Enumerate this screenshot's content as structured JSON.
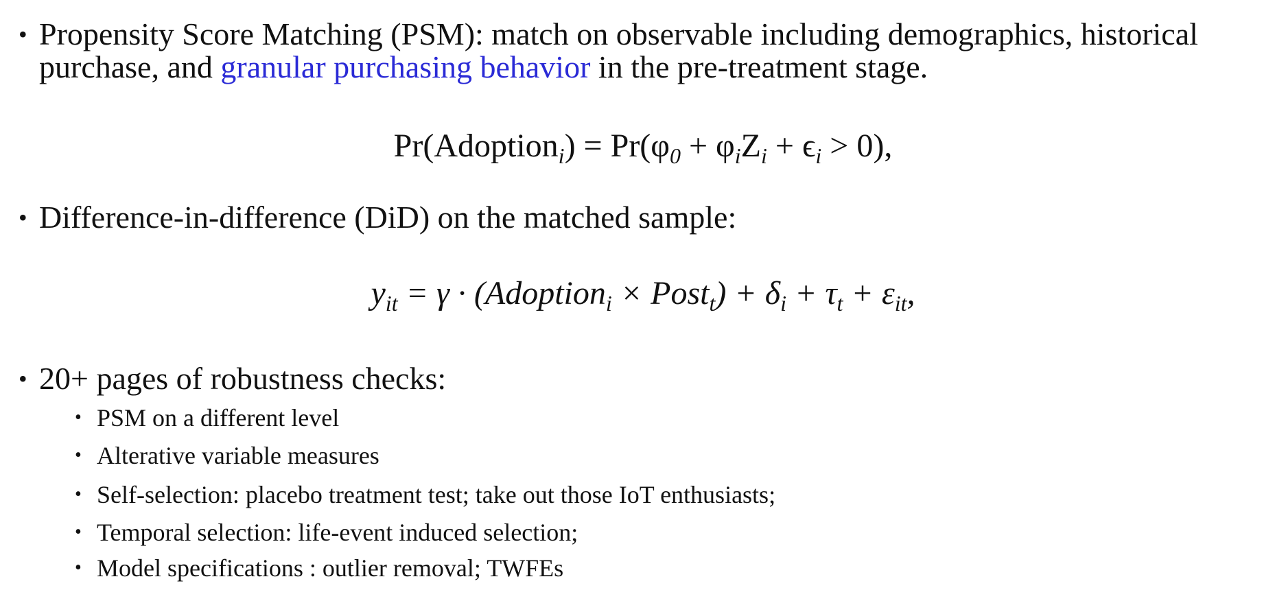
{
  "bullets": [
    {
      "parts": [
        "Propensity Score Matching (PSM): match on observable including demographics, historical purchase, and ",
        "granular purchasing behavior",
        " in the pre-treatment stage."
      ]
    },
    {
      "parts": [
        "Difference-in-difference (DiD) on the matched sample:"
      ]
    },
    {
      "parts": [
        "20+ pages of robustness checks:"
      ],
      "sub_bullets": [
        "PSM on a different level",
        "Alterative variable measures",
        "Self-selection: placebo treatment test; take out those IoT enthusiasts;",
        "Temporal selection: life-event induced selection;",
        "Model specifications : outlier removal; TWFEs"
      ]
    }
  ],
  "equations": [
    [
      {
        "text": "Pr(Adoption",
        "sub": "i"
      },
      {
        "text": ") = Pr(φ",
        "sub": "0"
      },
      {
        "text": " + φ",
        "sub": "i"
      },
      {
        "text": "Z",
        "sub": "i"
      },
      {
        "text": " + ϵ",
        "sub": "i"
      },
      {
        "text": " > 0),"
      }
    ],
    [
      {
        "text": "y",
        "sub": "it"
      },
      {
        "text": " = γ · (Adoption",
        "sub": "i"
      },
      {
        "text": " × Post",
        "sub": "t"
      },
      {
        "text": ") + δ",
        "sub": "i"
      },
      {
        "text": " + τ",
        "sub": "t"
      },
      {
        "text": " + ε",
        "sub": "it"
      },
      {
        "text": ","
      }
    ]
  ]
}
